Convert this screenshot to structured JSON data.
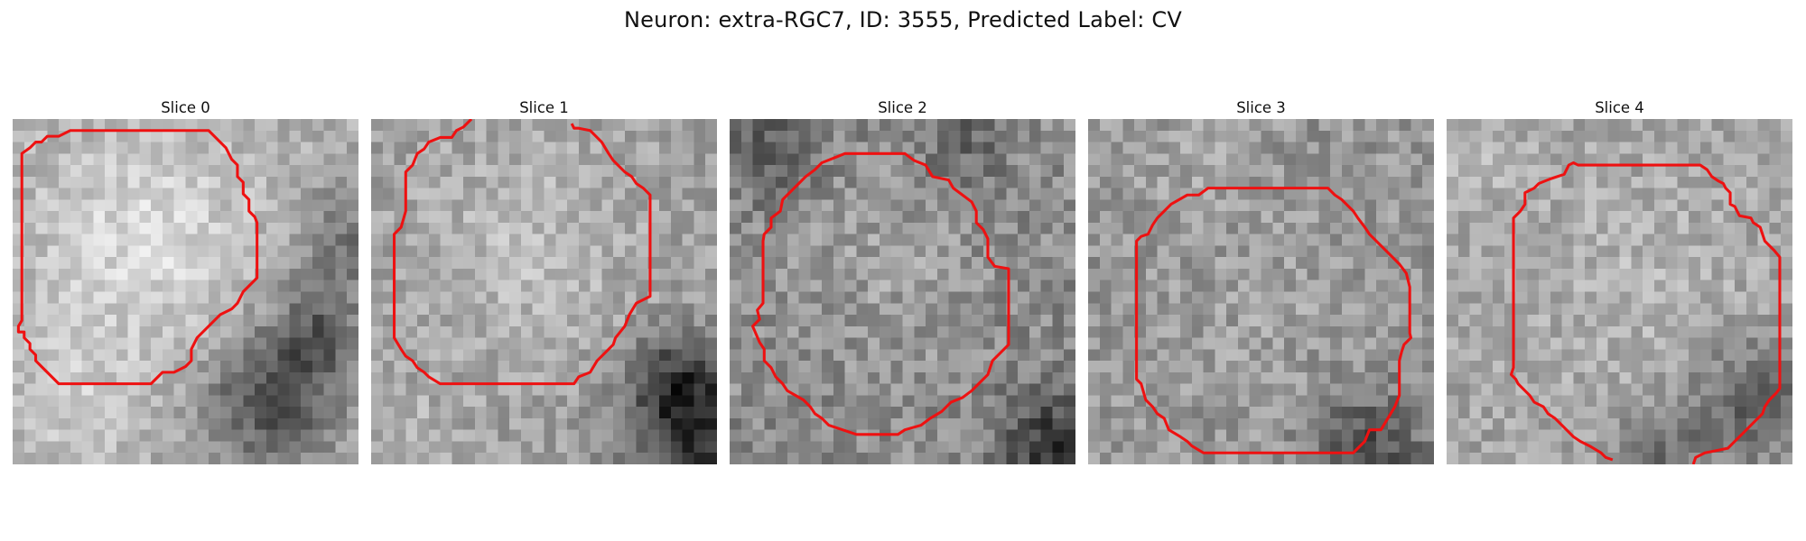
{
  "figure": {
    "title": "Neuron: extra-RGC7, ID: 3555, Predicted Label: CV"
  },
  "panels": [
    {
      "title": "Slice 0"
    },
    {
      "title": "Slice 1"
    },
    {
      "title": "Slice 2"
    },
    {
      "title": "Slice 3"
    },
    {
      "title": "Slice 4"
    }
  ],
  "colors": {
    "contour": "#ee1111",
    "background": "#ffffff"
  }
}
